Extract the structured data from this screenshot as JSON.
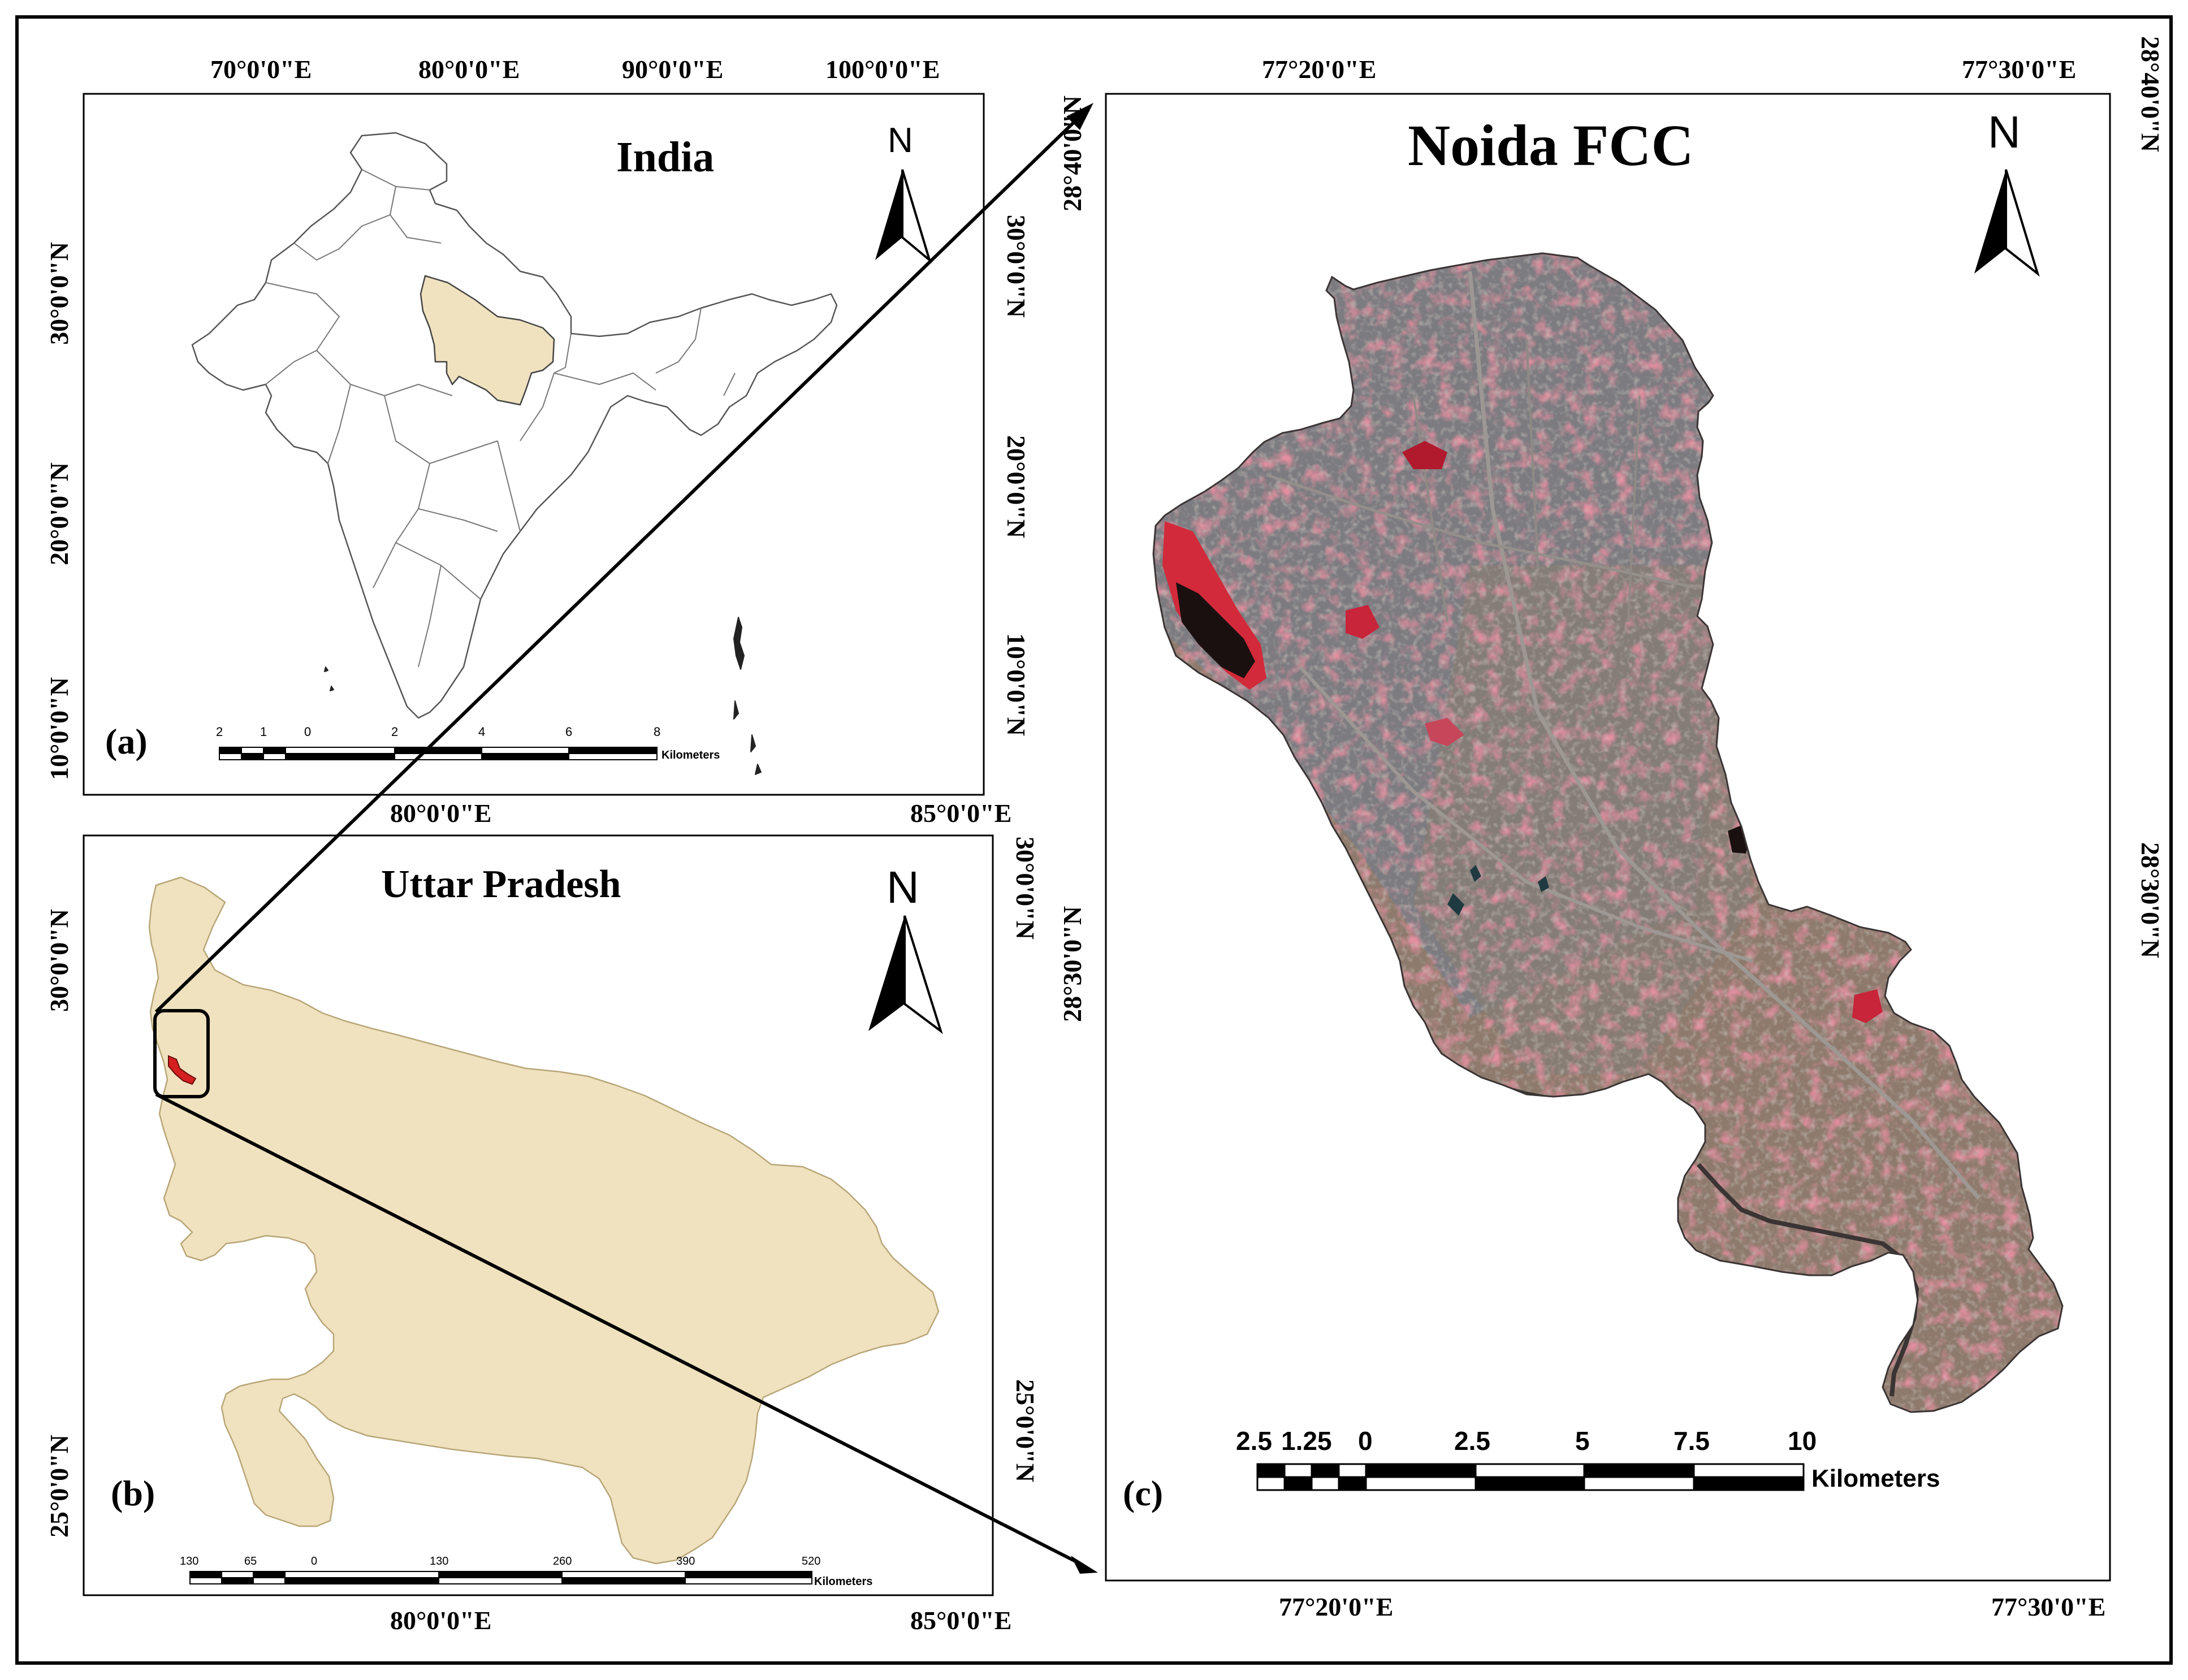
{
  "panels": {
    "a": {
      "label": "(a)",
      "title": "India",
      "north": "N",
      "top_coords": [
        "70°0'0\"E",
        "80°0'0\"E",
        "90°0'0\"E",
        "100°0'0\"E"
      ],
      "left_coords": [
        "30°0'0\"N",
        "20°0'0\"N",
        "10°0'0\"N"
      ],
      "right_coords": [
        "30°0'0\"N",
        "20°0'0\"N",
        "10°0'0\"N"
      ],
      "scale": {
        "labels": [
          "2",
          "1",
          "0",
          "2",
          "4",
          "6",
          "8"
        ],
        "unit": "Kilometers"
      }
    },
    "b": {
      "label": "(b)",
      "title": "Uttar Pradesh",
      "north": "N",
      "top_coords": [
        "80°0'0\"E",
        "85°0'0\"E"
      ],
      "bottom_coords": [
        "80°0'0\"E",
        "85°0'0\"E"
      ],
      "left_coords": [
        "30°0'0\"N",
        "25°0'0\"N"
      ],
      "right_coords": [
        "30°0'0\"N",
        "25°0'0\"N"
      ],
      "scale": {
        "labels": [
          "130",
          "65",
          "0",
          "130",
          "260",
          "390",
          "520"
        ],
        "unit": "Kilometers"
      }
    },
    "c": {
      "label": "(c)",
      "title": "Noida FCC",
      "north": "N",
      "top_coords": [
        "77°20'0\"E",
        "77°30'0\"E"
      ],
      "bottom_coords": [
        "77°20'0\"E",
        "77°30'0\"E"
      ],
      "left_coords": [
        "28°40'0\"N",
        "28°30'0\"N"
      ],
      "right_coords": [
        "28°40'0\"N",
        "28°30'0\"N"
      ],
      "scale": {
        "labels": [
          "2.5",
          "1.25",
          "0",
          "2.5",
          "5",
          "7.5",
          "10"
        ],
        "unit": "Kilometers"
      }
    }
  },
  "colors": {
    "frame": "#000000",
    "up_fill": "#f0e2bf",
    "noida_marker": "#d42020",
    "fcc_base": "#8d7a6c",
    "fcc_urban": "#7b7b80",
    "fcc_vegetation": "#c8465a",
    "fcc_water": "#1a1010"
  }
}
